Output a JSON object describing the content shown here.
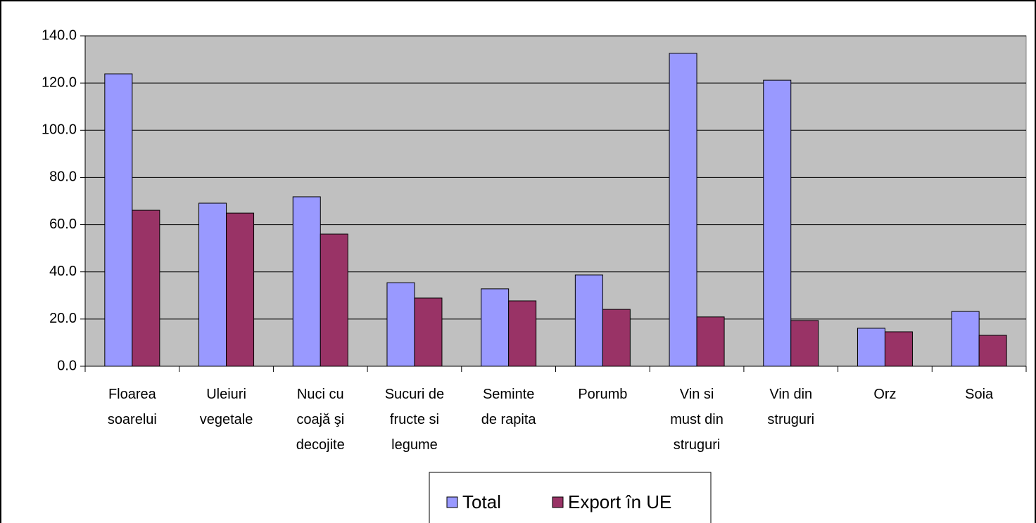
{
  "chart_data": {
    "type": "bar",
    "categories": [
      "Floarea soarelui",
      "Uleiuri vegetale",
      "Nuci cu coajă şi decojite",
      "Sucuri de fructe si legume",
      "Seminte de rapita",
      "Porumb",
      "Vin si must din struguri",
      "Vin din struguri",
      "Orz",
      "Soia"
    ],
    "series": [
      {
        "name": "Total",
        "color": "#9999ff",
        "values": [
          123.9,
          69.1,
          71.8,
          35.4,
          32.8,
          38.7,
          132.6,
          121.2,
          16.1,
          23.2
        ]
      },
      {
        "name": "Export în UE",
        "color": "#993366",
        "values": [
          66.1,
          64.9,
          56.0,
          28.9,
          27.7,
          24.1,
          20.9,
          19.4,
          14.6,
          13.1
        ]
      }
    ],
    "ylim": [
      0,
      140
    ],
    "yticks": [
      {
        "value": 0,
        "label": "0.0"
      },
      {
        "value": 20,
        "label": "20.0"
      },
      {
        "value": 40,
        "label": "40.0"
      },
      {
        "value": 60,
        "label": "60.0"
      },
      {
        "value": 80,
        "label": "80.0"
      },
      {
        "value": 100,
        "label": "100.0"
      },
      {
        "value": 120,
        "label": "120.0"
      },
      {
        "value": 140,
        "label": "140.0"
      }
    ],
    "grid": true,
    "legend": "bottom",
    "background": "#c0c0c0"
  }
}
